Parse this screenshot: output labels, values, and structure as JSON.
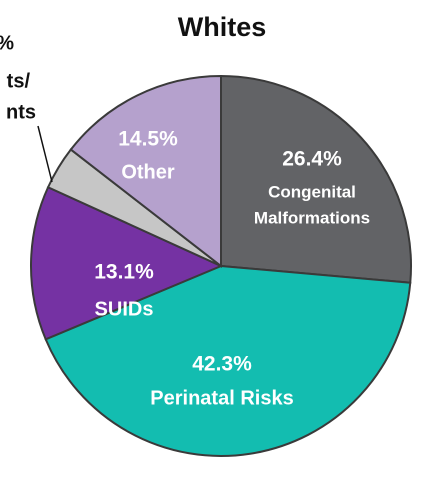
{
  "chart_data": {
    "type": "pie",
    "title": "Whites",
    "categories": [
      [
        "Congenital",
        "Malformations"
      ],
      [
        "Perinatal Risks"
      ],
      [
        "SUIDs"
      ],
      null,
      [
        "Other"
      ]
    ],
    "values": [
      26.4,
      42.3,
      13.1,
      3.7,
      14.5
    ],
    "value_labels": [
      "26.4%",
      "42.3%",
      "13.1%",
      null,
      "14.5%"
    ],
    "colors": [
      "#626366",
      "#13bdb0",
      "#7532a3",
      "#c6c6c6",
      "#b5a1cd"
    ],
    "annotation": [
      "%",
      "ts/",
      "nts"
    ]
  }
}
